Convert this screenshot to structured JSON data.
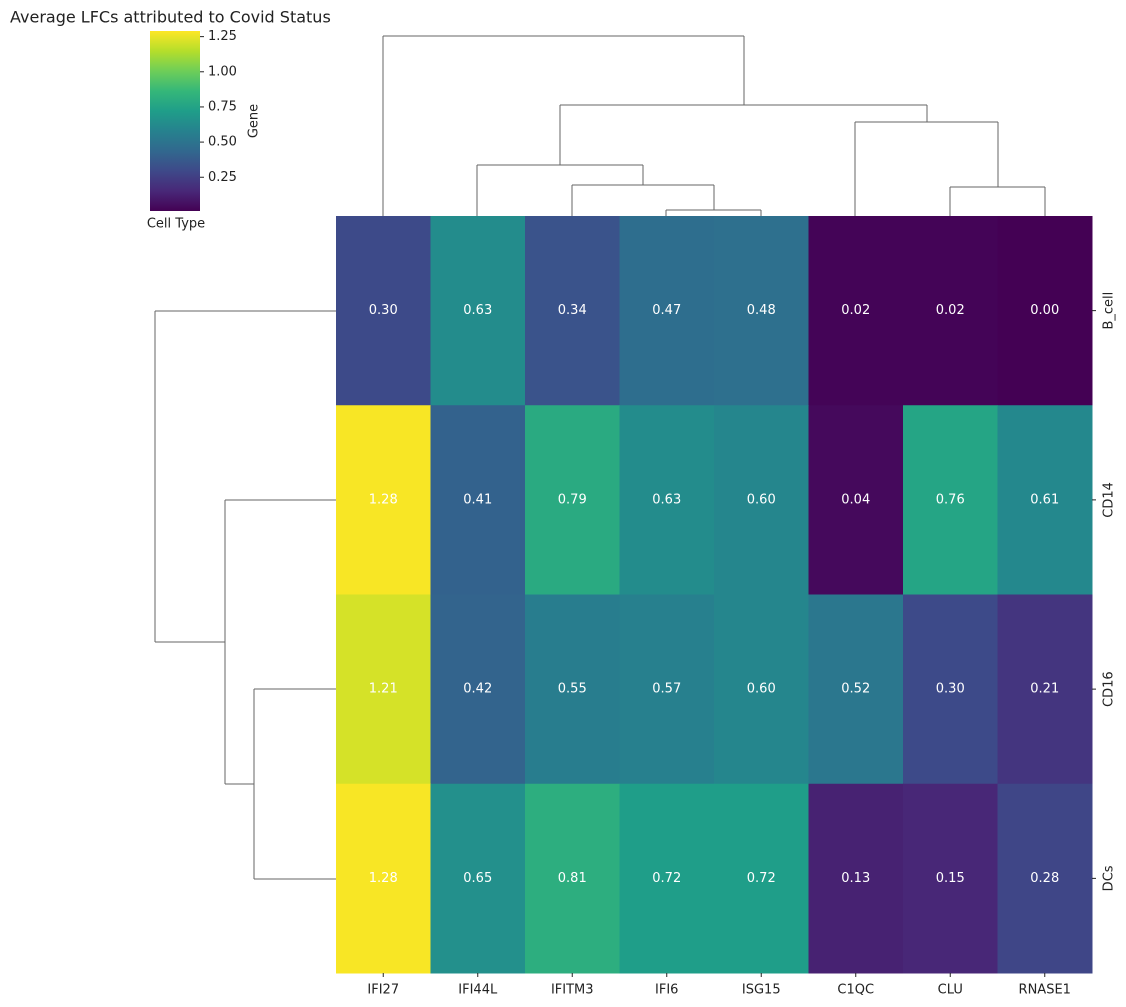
{
  "chart_data": {
    "type": "heatmap",
    "title": "Average LFCs attributed to Covid Status",
    "colorbar_label": "Gene",
    "colorbar_xlabel": "Cell Type",
    "colormap": "viridis",
    "rows": [
      "B_cell",
      "CD14",
      "CD16",
      "DCs"
    ],
    "columns": [
      "IFI27",
      "IFI44L",
      "IFITM3",
      "IFI6",
      "ISG15",
      "C1QC",
      "CLU",
      "RNASE1"
    ],
    "values": [
      [
        0.3,
        0.63,
        0.34,
        0.47,
        0.48,
        0.02,
        0.02,
        0.0
      ],
      [
        1.28,
        0.41,
        0.79,
        0.63,
        0.6,
        0.04,
        0.76,
        0.61
      ],
      [
        1.21,
        0.42,
        0.55,
        0.57,
        0.6,
        0.52,
        0.3,
        0.21
      ],
      [
        1.28,
        0.65,
        0.81,
        0.72,
        0.72,
        0.13,
        0.15,
        0.28
      ]
    ],
    "value_labels": [
      [
        "0.30",
        "0.63",
        "0.34",
        "0.47",
        "0.48",
        "0.02",
        "0.02",
        "0.00"
      ],
      [
        "1.28",
        "0.41",
        "0.79",
        "0.63",
        "0.60",
        "0.04",
        "0.76",
        "0.61"
      ],
      [
        "1.21",
        "0.42",
        "0.55",
        "0.57",
        "0.60",
        "0.52",
        "0.30",
        "0.21"
      ],
      [
        "1.28",
        "0.65",
        "0.81",
        "0.72",
        "0.72",
        "0.13",
        "0.15",
        "0.28"
      ]
    ],
    "clim": [
      0.01,
      1.29
    ],
    "cticks": [
      {
        "value": 0.25,
        "label": "0.25"
      },
      {
        "value": 0.5,
        "label": "0.50"
      },
      {
        "value": 0.75,
        "label": "0.75"
      },
      {
        "value": 1.0,
        "label": "1.00"
      },
      {
        "value": 1.25,
        "label": "1.25"
      }
    ]
  }
}
